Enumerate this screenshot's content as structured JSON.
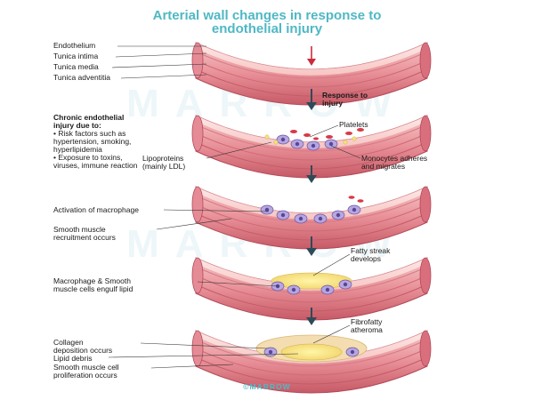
{
  "title_line1": "Arterial wall changes in response to",
  "title_line2": "endothelial injury",
  "watermark": "MARROW",
  "footer": "©MARROW",
  "stage1": {
    "labels": [
      "Endothelium",
      "Tunica intima",
      "Tunica media",
      "Tunica adventitia"
    ]
  },
  "stage2": {
    "response_line1": "Response to",
    "response_line2": "injury",
    "heading_line1": "Chronic endothelial",
    "heading_line2": "injury due to:",
    "bullet1_line1": "• Risk factors such as",
    "bullet1_line2": "  hypertension, smoking,",
    "bullet1_line3": "  hyperlipidemia",
    "bullet2_line1": "• Exposure to toxins,",
    "bullet2_line2": "  viruses, immune reaction",
    "platelets": "Platelets",
    "lipo_line1": "Lipoproteins",
    "lipo_line2": "(mainly LDL)",
    "mono_line1": "Monocytes adheres",
    "mono_line2": "and migrates"
  },
  "stage3": {
    "activation": "Activation of macrophage",
    "smooth_line1": "Smooth muscle",
    "smooth_line2": "recruitment occurs"
  },
  "stage4": {
    "fatty_line1": "Fatty streak",
    "fatty_line2": "develops",
    "engulf_line1": "Macrophage & Smooth",
    "engulf_line2": "muscle cells engulf lipid"
  },
  "stage5": {
    "fibro_line1": "Fibrofatty",
    "fibro_line2": "atheroma",
    "collagen_line1": "Collagen",
    "collagen_line2": "deposition occurs",
    "debris": "Lipid debris",
    "prolif_line1": "Smooth muscle cell",
    "prolif_line2": "proliferation occurs"
  }
}
